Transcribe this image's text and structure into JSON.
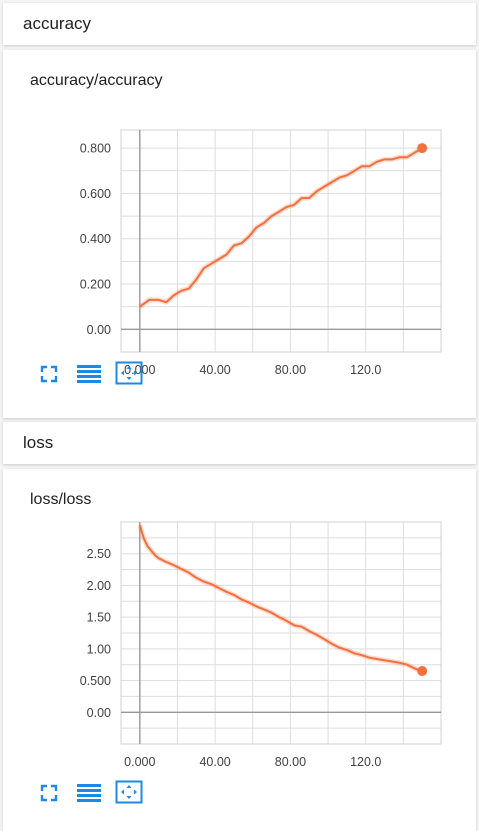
{
  "accent_color": "#f4703e",
  "icons": [
    "fullscreen-icon",
    "list-icon",
    "fit-domain-icon"
  ],
  "sections": [
    {
      "header": "accuracy",
      "card_title": "accuracy/accuracy"
    },
    {
      "header": "loss",
      "card_title": "loss/loss"
    }
  ],
  "chart_data": [
    {
      "type": "line",
      "title": "accuracy/accuracy",
      "xlabel": "",
      "ylabel": "",
      "xlim": [
        -10,
        160
      ],
      "ylim": [
        -0.1,
        0.88
      ],
      "x_ticks": [
        0,
        40,
        80,
        120
      ],
      "x_tick_labels": [
        "0.000",
        "40.00",
        "80.00",
        "120.0"
      ],
      "y_ticks": [
        0,
        0.2,
        0.4,
        0.6,
        0.8
      ],
      "y_tick_labels": [
        "0.00",
        "0.200",
        "0.400",
        "0.600",
        "0.800"
      ],
      "grid": true,
      "series": [
        {
          "color": "#f4703e",
          "x": [
            0,
            5,
            10,
            14,
            18,
            22,
            26,
            30,
            34,
            38,
            42,
            46,
            50,
            54,
            58,
            62,
            66,
            70,
            74,
            78,
            82,
            86,
            90,
            94,
            98,
            102,
            106,
            110,
            114,
            118,
            122,
            126,
            130,
            134,
            138,
            142,
            146,
            150
          ],
          "y": [
            0.1,
            0.13,
            0.13,
            0.12,
            0.15,
            0.17,
            0.18,
            0.22,
            0.27,
            0.29,
            0.31,
            0.33,
            0.37,
            0.38,
            0.41,
            0.45,
            0.47,
            0.5,
            0.52,
            0.54,
            0.55,
            0.58,
            0.58,
            0.61,
            0.63,
            0.65,
            0.67,
            0.68,
            0.7,
            0.72,
            0.72,
            0.74,
            0.75,
            0.75,
            0.76,
            0.76,
            0.78,
            0.8
          ]
        }
      ]
    },
    {
      "type": "line",
      "title": "loss/loss",
      "xlabel": "",
      "ylabel": "",
      "xlim": [
        -10,
        160
      ],
      "ylim": [
        -0.5,
        3.0
      ],
      "x_ticks": [
        0,
        40,
        80,
        120
      ],
      "x_tick_labels": [
        "0.000",
        "40.00",
        "80.00",
        "120.0"
      ],
      "y_ticks": [
        0,
        0.5,
        1.0,
        1.5,
        2.0,
        2.5
      ],
      "y_tick_labels": [
        "0.00",
        "0.500",
        "1.00",
        "1.50",
        "2.00",
        "2.50"
      ],
      "grid": true,
      "series": [
        {
          "color": "#f4703e",
          "x": [
            0,
            2,
            4,
            6,
            8,
            10,
            14,
            18,
            22,
            26,
            30,
            34,
            38,
            42,
            46,
            50,
            54,
            58,
            62,
            66,
            70,
            74,
            78,
            82,
            86,
            90,
            94,
            98,
            102,
            106,
            110,
            114,
            118,
            122,
            126,
            130,
            134,
            138,
            142,
            146,
            150
          ],
          "y": [
            2.95,
            2.75,
            2.62,
            2.55,
            2.48,
            2.43,
            2.37,
            2.32,
            2.26,
            2.2,
            2.12,
            2.06,
            2.02,
            1.96,
            1.9,
            1.85,
            1.78,
            1.73,
            1.67,
            1.62,
            1.57,
            1.5,
            1.44,
            1.37,
            1.35,
            1.28,
            1.22,
            1.15,
            1.08,
            1.02,
            0.98,
            0.93,
            0.9,
            0.86,
            0.84,
            0.82,
            0.8,
            0.78,
            0.75,
            0.69,
            0.65
          ]
        }
      ]
    }
  ]
}
